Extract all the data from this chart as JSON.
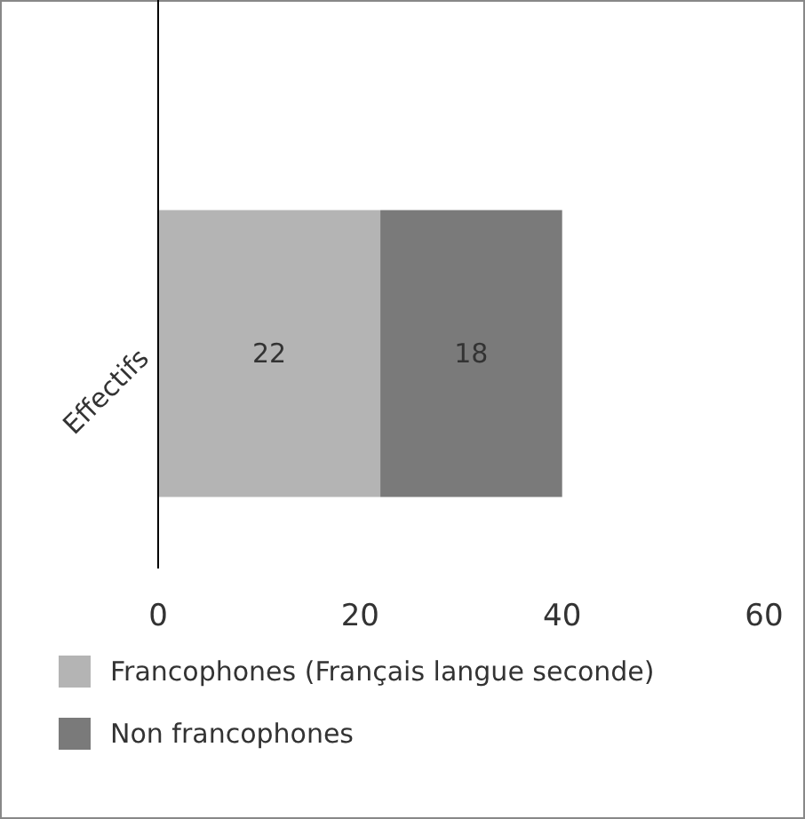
{
  "chart_data": {
    "type": "bar",
    "orientation": "horizontal",
    "stacked": true,
    "categories": [
      "Effectifs"
    ],
    "series": [
      {
        "name": "Francophones (Français langue seconde)",
        "color": "#b4b4b4",
        "values": [
          22
        ]
      },
      {
        "name": "Non francophones",
        "color": "#7a7a7a",
        "values": [
          18
        ]
      }
    ],
    "xlim": [
      0,
      60
    ],
    "xticks": [
      0,
      20,
      40,
      60
    ],
    "data_labels": true,
    "legend": "bottom",
    "grid": false
  }
}
